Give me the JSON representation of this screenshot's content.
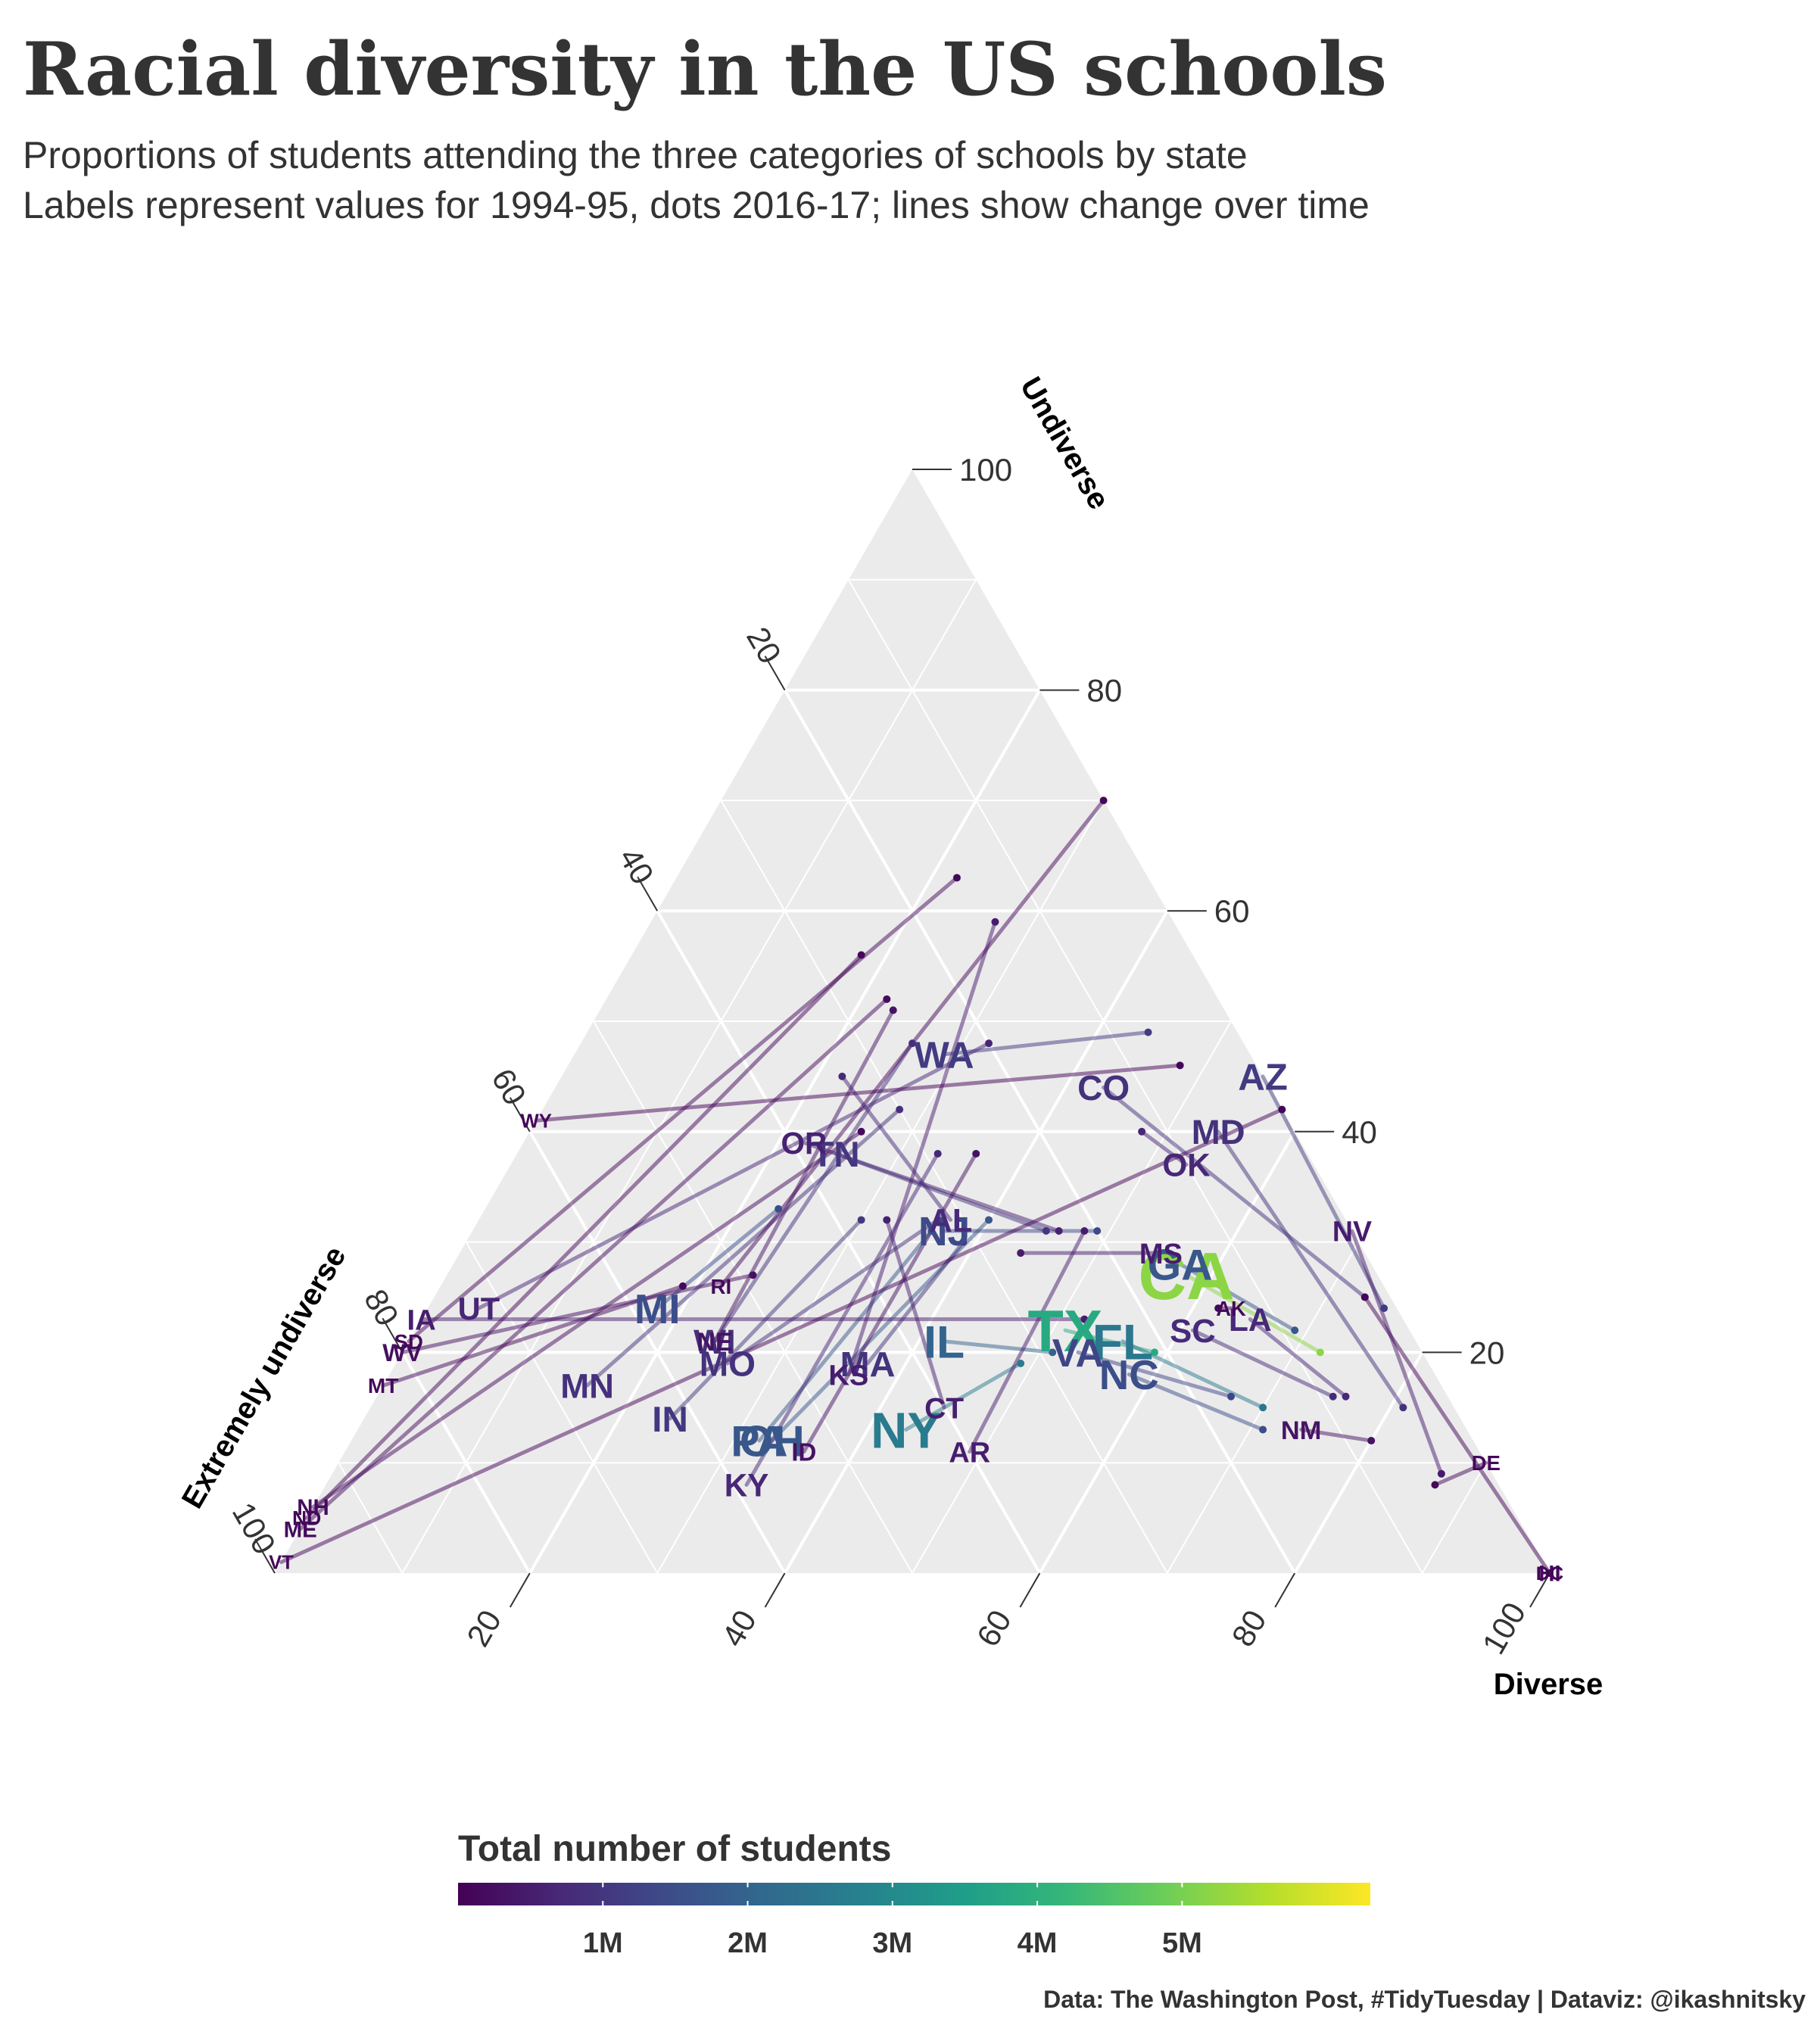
{
  "title": "Racial diversity in the US schools",
  "subtitle_lines": [
    "Proportions of students attending the three categories of schools by state",
    "Labels represent values for 1994-95, dots 2016-17; lines show change over time"
  ],
  "caption": "Data: The Washington Post, #TidyTuesday | Dataviz: @ikashnitsky",
  "chart_data": {
    "type": "scatter",
    "subtype": "ternary",
    "axes": {
      "top": {
        "label": "Undiverse",
        "ticks": [
          "20",
          "40",
          "60",
          "80",
          "100"
        ]
      },
      "left": {
        "label": "Extremely undiverse",
        "ticks": [
          "20",
          "40",
          "60",
          "80",
          "100"
        ]
      },
      "right": {
        "label": "Diverse",
        "ticks": [
          "20",
          "40",
          "60",
          "80",
          "100"
        ]
      },
      "range": [
        0,
        100
      ]
    },
    "grid": true,
    "legend": {
      "title": "Total number of students",
      "placement": "bottom",
      "tick_labels": [
        "1M",
        "2M",
        "3M",
        "4M",
        "5M"
      ],
      "tick_values": [
        1000000,
        2000000,
        3000000,
        4000000,
        5000000
      ],
      "range": [
        0,
        6300000
      ],
      "colors": [
        "#440154",
        "#3b528b",
        "#21918c",
        "#5ec962",
        "#fde725"
      ]
    },
    "states": [
      {
        "label": "CA",
        "v1994": [
          27,
          15,
          58
        ],
        "v2016": [
          20,
          8,
          72
        ],
        "students": 5200000
      },
      {
        "label": "TX",
        "v1994": [
          22,
          27,
          51
        ],
        "v2016": [
          20,
          21,
          59
        ],
        "students": 3800000
      },
      {
        "label": "NY",
        "v1994": [
          13,
          44,
          43
        ],
        "v2016": [
          19,
          32,
          49
        ],
        "students": 2600000
      },
      {
        "label": "FL",
        "v1994": [
          21,
          23,
          56
        ],
        "v2016": [
          15,
          15,
          70
        ],
        "students": 2500000
      },
      {
        "label": "IL",
        "v1994": [
          21,
          37,
          42
        ],
        "v2016": [
          20,
          29,
          51
        ],
        "students": 2000000
      },
      {
        "label": "PA",
        "v1994": [
          12,
          56,
          32
        ],
        "v2016": [
          31,
          33,
          36
        ],
        "students": 1700000
      },
      {
        "label": "OH",
        "v1994": [
          12,
          55,
          33
        ],
        "v2016": [
          32,
          28,
          40
        ],
        "students": 1700000
      },
      {
        "label": "MI",
        "v1994": [
          24,
          58,
          18
        ],
        "v2016": [
          33,
          44,
          23
        ],
        "students": 1500000
      },
      {
        "label": "GA",
        "v1994": [
          28,
          15,
          57
        ],
        "v2016": [
          22,
          9,
          69
        ],
        "students": 1700000
      },
      {
        "label": "NC",
        "v1994": [
          18,
          24,
          58
        ],
        "v2016": [
          13,
          16,
          71
        ],
        "students": 1500000
      },
      {
        "label": "NJ",
        "v1994": [
          31,
          32,
          37
        ],
        "v2016": [
          31,
          20,
          49
        ],
        "students": 1400000
      },
      {
        "label": "VA",
        "v1994": [
          20,
          27,
          53
        ],
        "v2016": [
          16,
          17,
          67
        ],
        "students": 1300000
      },
      {
        "label": "WA",
        "v1994": [
          47,
          24,
          29
        ],
        "v2016": [
          49,
          7,
          44
        ],
        "students": 1100000
      },
      {
        "label": "IN",
        "v1994": [
          14,
          62,
          24
        ],
        "v2016": [
          32,
          38,
          30
        ],
        "students": 1000000
      },
      {
        "label": "MA",
        "v1994": [
          19,
          44,
          37
        ],
        "v2016": [
          30,
          31,
          39
        ],
        "students": 950000
      },
      {
        "label": "AZ",
        "v1994": [
          45,
          0,
          55
        ],
        "v2016": [
          24,
          1,
          75
        ],
        "students": 1100000
      },
      {
        "label": "MD",
        "v1994": [
          40,
          6,
          54
        ],
        "v2016": [
          15,
          4,
          81
        ],
        "students": 880000
      },
      {
        "label": "TN",
        "v1994": [
          38,
          37,
          25
        ],
        "v2016": [
          31,
          24,
          45
        ],
        "students": 1000000
      },
      {
        "label": "MO",
        "v1994": [
          19,
          55,
          26
        ],
        "v2016": [
          32,
          32,
          36
        ],
        "students": 910000
      },
      {
        "label": "MN",
        "v1994": [
          17,
          67,
          16
        ],
        "v2016": [
          42,
          30,
          28
        ],
        "students": 870000
      },
      {
        "label": "WI",
        "v1994": [
          21,
          55,
          24
        ],
        "v2016": [
          48,
          26,
          26
        ],
        "students": 870000
      },
      {
        "label": "CO",
        "v1994": [
          44,
          13,
          43
        ],
        "v2016": [
          25,
          2,
          73
        ],
        "students": 900000
      },
      {
        "label": "AL",
        "v1994": [
          32,
          31,
          37
        ],
        "v2016": [
          45,
          33,
          22
        ],
        "students": 740000
      },
      {
        "label": "SC",
        "v1994": [
          22,
          17,
          61
        ],
        "v2016": [
          16,
          9,
          75
        ],
        "students": 770000
      },
      {
        "label": "LA",
        "v1994": [
          23,
          12,
          65
        ],
        "v2016": [
          16,
          8,
          76
        ],
        "students": 710000
      },
      {
        "label": "KY",
        "v1994": [
          8,
          59,
          33
        ],
        "v2016": [
          38,
          29,
          33
        ],
        "students": 690000
      },
      {
        "label": "OR",
        "v1994": [
          39,
          39,
          22
        ],
        "v2016": [
          31,
          23,
          46
        ],
        "students": 600000
      },
      {
        "label": "OK",
        "v1994": [
          37,
          10,
          53
        ],
        "v2016": [
          40,
          12,
          48
        ],
        "students": 690000
      },
      {
        "label": "CT",
        "v1994": [
          15,
          40,
          45
        ],
        "v2016": [
          32,
          36,
          32
        ],
        "students": 530000
      },
      {
        "label": "UT",
        "v1994": [
          24,
          72,
          4
        ],
        "v2016": [
          48,
          20,
          32
        ],
        "students": 660000
      },
      {
        "label": "IA",
        "v1994": [
          23,
          77,
          0
        ],
        "v2016": [
          23,
          25,
          52
        ],
        "students": 500000
      },
      {
        "label": "MS",
        "v1994": [
          29,
          16,
          55
        ],
        "v2016": [
          29,
          27,
          44
        ],
        "students": 490000
      },
      {
        "label": "AR",
        "v1994": [
          11,
          40,
          49
        ],
        "v2016": [
          31,
          21,
          48
        ],
        "students": 480000
      },
      {
        "label": "KS",
        "v1994": [
          18,
          46,
          36
        ],
        "v2016": [
          59,
          14,
          27
        ],
        "students": 490000
      },
      {
        "label": "NV",
        "v1994": [
          31,
          0,
          69
        ],
        "v2016": [
          9,
          4,
          87
        ],
        "students": 470000
      },
      {
        "label": "NM",
        "v1994": [
          13,
          13,
          74
        ],
        "v2016": [
          12,
          8,
          80
        ],
        "students": 340000
      },
      {
        "label": "NE",
        "v1994": [
          21,
          55,
          24
        ],
        "v2016": [
          51,
          26,
          23
        ],
        "students": 320000
      },
      {
        "label": "WV",
        "v1994": [
          20,
          80,
          0
        ],
        "v2016": [
          27,
          49,
          24
        ],
        "students": 270000
      },
      {
        "label": "ID",
        "v1994": [
          11,
          53,
          36
        ],
        "v2016": [
          38,
          26,
          36
        ],
        "students": 290000
      },
      {
        "label": "HI",
        "v1994": [
          0,
          0,
          100
        ],
        "v2016": [
          0,
          0,
          100
        ],
        "students": 180000
      },
      {
        "label": "NH",
        "v1994": [
          6,
          94,
          0
        ],
        "v2016": [
          40,
          34,
          26
        ],
        "students": 180000
      },
      {
        "label": "ME",
        "v1994": [
          4,
          96,
          0
        ],
        "v2016": [
          52,
          26,
          22
        ],
        "students": 180000
      },
      {
        "label": "RI",
        "v1994": [
          26,
          52,
          22
        ],
        "v2016": [
          70,
          0,
          30
        ],
        "students": 140000
      },
      {
        "label": "MT",
        "v1994": [
          17,
          83,
          0
        ],
        "v2016": [
          26,
          55,
          19
        ],
        "students": 145000
      },
      {
        "label": "DE",
        "v1994": [
          10,
          0,
          90
        ],
        "v2016": [
          8,
          5,
          87
        ],
        "students": 135000
      },
      {
        "label": "SD",
        "v1994": [
          21,
          79,
          0
        ],
        "v2016": [
          63,
          15,
          22
        ],
        "students": 136000
      },
      {
        "label": "AK",
        "v1994": [
          24,
          13,
          63
        ],
        "v2016": [
          24,
          14,
          62
        ],
        "students": 130000
      },
      {
        "label": "ND",
        "v1994": [
          5,
          95,
          0
        ],
        "v2016": [
          56,
          26,
          18
        ],
        "students": 110000
      },
      {
        "label": "VT",
        "v1994": [
          1,
          99,
          0
        ],
        "v2016": [
          42,
          0,
          58
        ],
        "students": 90000
      },
      {
        "label": "DC",
        "v1994": [
          0,
          0,
          100
        ],
        "v2016": [
          25,
          2,
          73
        ],
        "students": 85000
      },
      {
        "label": "WY",
        "v1994": [
          41,
          59,
          0
        ],
        "v2016": [
          46,
          6,
          48
        ],
        "students": 95000
      }
    ]
  }
}
